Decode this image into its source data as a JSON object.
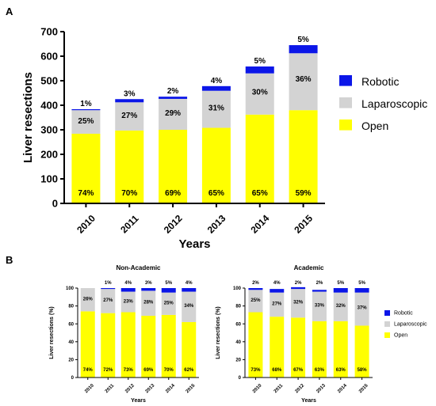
{
  "colors": {
    "open": "#ffff00",
    "laparoscopic": "#d3d3d3",
    "robotic": "#0b16e8",
    "axis": "#000000"
  },
  "panel_labels": {
    "a": "A",
    "b": "B"
  },
  "chart_data": [
    {
      "type": "bar",
      "stacked": true,
      "panel": "A",
      "title": "",
      "xlabel": "Years",
      "ylabel": "Liver resections",
      "ylim": [
        0,
        700
      ],
      "yticks": [
        "0",
        "100",
        "200",
        "300",
        "400",
        "500",
        "600",
        "700"
      ],
      "categories": [
        "2010",
        "2011",
        "2012",
        "2013",
        "2014",
        "2015"
      ],
      "series": [
        {
          "name": "Open",
          "values": [
            284,
            297,
            300,
            308,
            362,
            380
          ],
          "labels": [
            "74%",
            "70%",
            "69%",
            "65%",
            "65%",
            "59%"
          ]
        },
        {
          "name": "Laparoscopic",
          "values": [
            96,
            115,
            126,
            151,
            168,
            232
          ],
          "labels": [
            "25%",
            "27%",
            "29%",
            "31%",
            "30%",
            "36%"
          ]
        },
        {
          "name": "Robotic",
          "values": [
            4,
            13,
            9,
            19,
            28,
            33
          ],
          "labels": [
            "1%",
            "3%",
            "2%",
            "4%",
            "5%",
            "5%"
          ]
        }
      ],
      "legend": {
        "position": "right",
        "order": [
          "Robotic",
          "Laparoscopic",
          "Open"
        ]
      },
      "grid": false
    },
    {
      "type": "bar",
      "stacked": true,
      "panel": "B",
      "title": "Non-Academic",
      "xlabel": "Years",
      "ylabel": "Liver resections (%)",
      "ylim": [
        0,
        100
      ],
      "yticks": [
        "0",
        "20",
        "40",
        "60",
        "80",
        "100"
      ],
      "categories": [
        "2010",
        "2011",
        "2012",
        "2013",
        "2014",
        "2015"
      ],
      "series": [
        {
          "name": "Open",
          "values": [
            74,
            72,
            73,
            69,
            70,
            62
          ],
          "labels": [
            "74%",
            "72%",
            "73%",
            "69%",
            "70%",
            "62%"
          ]
        },
        {
          "name": "Laparoscopic",
          "values": [
            26,
            27,
            23,
            28,
            25,
            34
          ],
          "labels": [
            "26%",
            "27%",
            "23%",
            "28%",
            "25%",
            "34%"
          ]
        },
        {
          "name": "Robotic",
          "values": [
            0,
            1,
            4,
            3,
            5,
            4
          ],
          "labels": [
            "",
            "1%",
            "4%",
            "3%",
            "5%",
            "4%"
          ]
        }
      ],
      "grid": false
    },
    {
      "type": "bar",
      "stacked": true,
      "panel": "B",
      "title": "Academic",
      "xlabel": "Years",
      "ylabel": "Liver resections (%)",
      "ylim": [
        0,
        100
      ],
      "yticks": [
        "0",
        "20",
        "40",
        "60",
        "80",
        "100"
      ],
      "categories": [
        "2010",
        "2011",
        "2012",
        "2013",
        "2014",
        "2015"
      ],
      "series": [
        {
          "name": "Open",
          "values": [
            73,
            68,
            67,
            63,
            63,
            58
          ],
          "labels": [
            "73%",
            "68%",
            "67%",
            "63%",
            "63%",
            "58%"
          ]
        },
        {
          "name": "Laparoscopic",
          "values": [
            25,
            27,
            32,
            33,
            32,
            37
          ],
          "labels": [
            "25%",
            "27%",
            "32%",
            "33%",
            "32%",
            "37%"
          ]
        },
        {
          "name": "Robotic",
          "values": [
            2,
            4,
            2,
            2,
            5,
            5
          ],
          "labels": [
            "2%",
            "4%",
            "2%",
            "2%",
            "5%",
            "5%"
          ]
        }
      ],
      "legend": {
        "position": "right",
        "order": [
          "Robotic",
          "Laparoscopic",
          "Open"
        ]
      },
      "grid": false
    }
  ]
}
